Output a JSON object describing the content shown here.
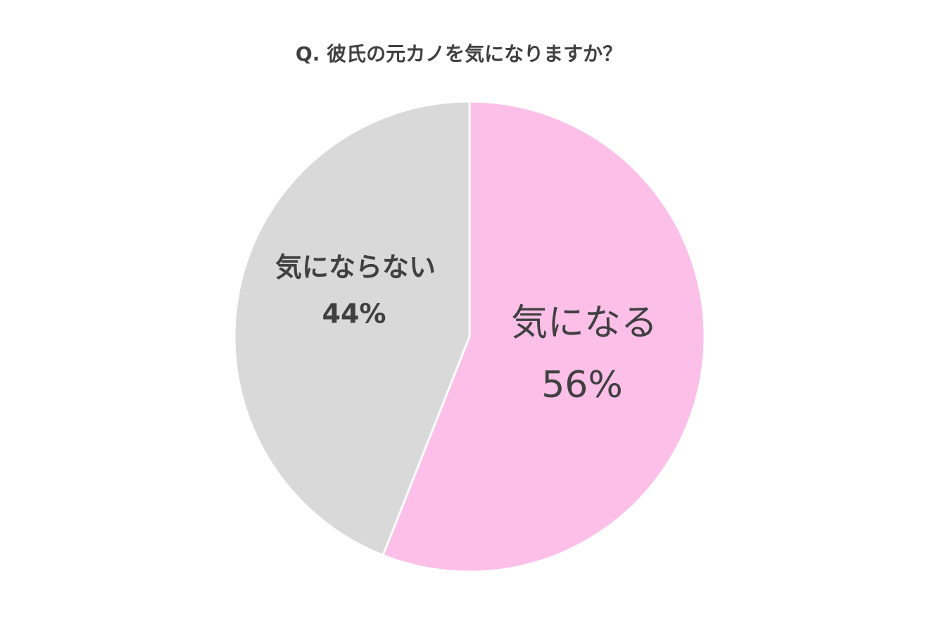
{
  "chart_data": {
    "type": "pie",
    "title": "Q. 彼氏の元カノを気になりますか？",
    "categories": [
      "気になる",
      "気にならない"
    ],
    "values": [
      56,
      44
    ],
    "value_labels": [
      "56%",
      "44%"
    ],
    "colors": [
      "#fcc0e8",
      "#d9d9d9"
    ]
  }
}
